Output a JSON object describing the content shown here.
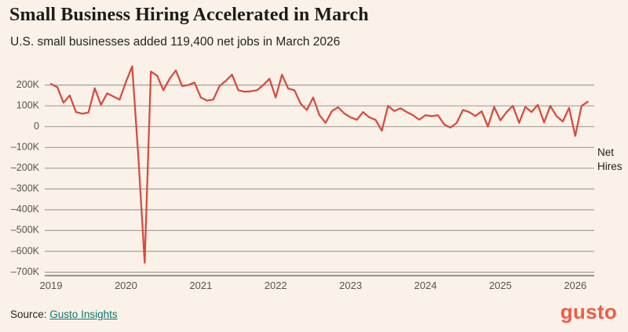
{
  "header": {
    "title": "Small Business Hiring Accelerated in March",
    "subtitle": "U.S. small businesses added 119,400 net jobs in March 2026"
  },
  "chart_data": {
    "type": "line",
    "title": "Small Business Hiring Accelerated in March",
    "series_label": "Net Hires",
    "unit": "thousands of net hires per month",
    "x_start": "2019-01",
    "x_end": "2026-03",
    "frequency": "monthly",
    "x_ticks": [
      "2019",
      "2020",
      "2021",
      "2022",
      "2023",
      "2024",
      "2025",
      "2026"
    ],
    "y_ticks": [
      "200K",
      "100K",
      "0",
      "–100K",
      "–200K",
      "–300K",
      "–400K",
      "–500K",
      "–600K",
      "–700K"
    ],
    "y_tick_values": [
      200,
      100,
      0,
      -100,
      -200,
      -300,
      -400,
      -500,
      -600,
      -700
    ],
    "ylim": [
      -700,
      300
    ],
    "grid": true,
    "values": [
      205,
      190,
      115,
      150,
      70,
      62,
      68,
      185,
      105,
      160,
      145,
      130,
      215,
      290,
      -150,
      -655,
      265,
      245,
      175,
      230,
      270,
      195,
      200,
      212,
      140,
      125,
      130,
      195,
      220,
      250,
      175,
      168,
      170,
      175,
      200,
      230,
      140,
      250,
      183,
      175,
      110,
      80,
      140,
      55,
      18,
      75,
      93,
      63,
      45,
      33,
      70,
      45,
      33,
      -20,
      100,
      75,
      88,
      70,
      55,
      33,
      55,
      50,
      55,
      10,
      -5,
      18,
      80,
      70,
      51,
      74,
      0,
      95,
      30,
      70,
      100,
      18,
      95,
      70,
      105,
      20,
      100,
      50,
      25,
      90,
      -45,
      100,
      119.4
    ],
    "final_point_label": "119,400 net jobs (March 2026)",
    "colors": {
      "line": "#d94a3d",
      "grid": "#a3a099",
      "axis": "#76736d",
      "tick_text": "#55534e",
      "background": "#faf2e8"
    }
  },
  "footer": {
    "source_label": "Source:",
    "source_link": "Gusto Insights",
    "logo_text": "gusto"
  }
}
